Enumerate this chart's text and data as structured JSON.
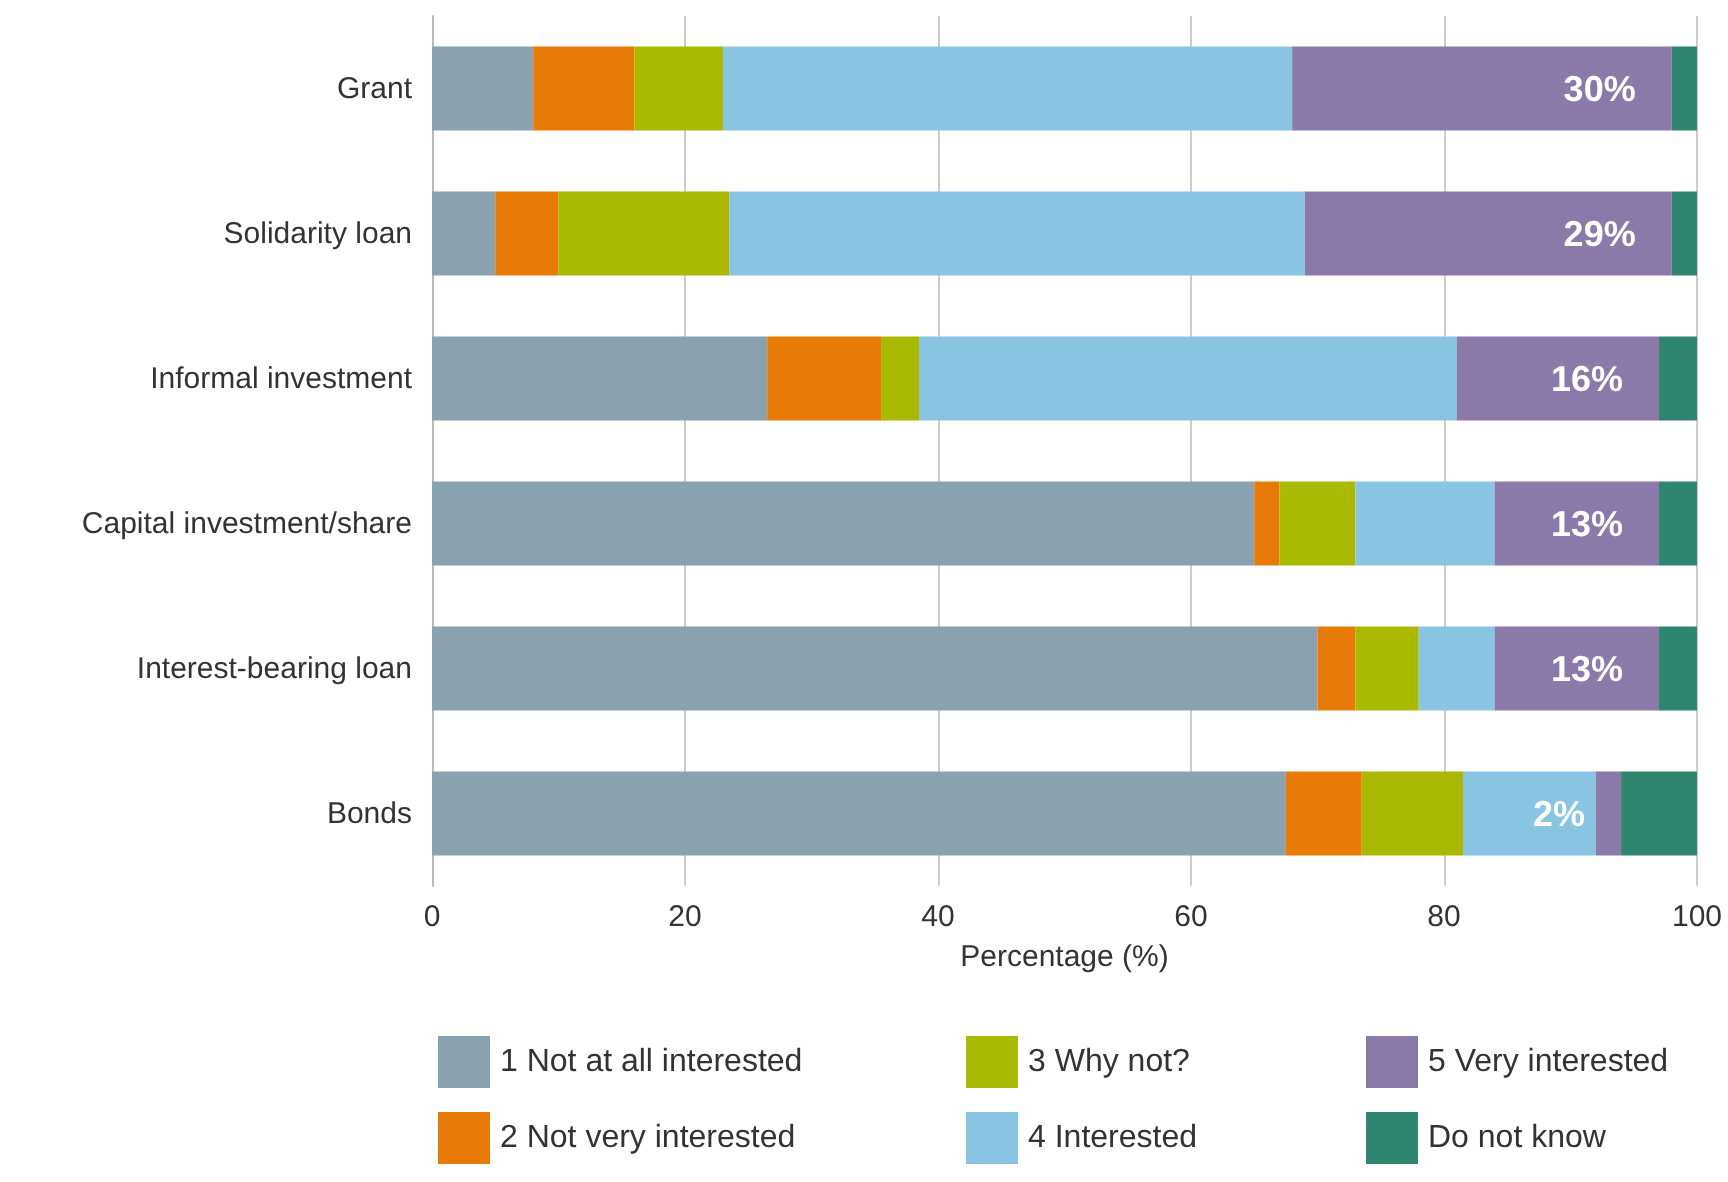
{
  "chart_data": {
    "type": "bar",
    "orientation": "horizontal",
    "stacked": true,
    "categories": [
      "Grant",
      "Solidarity loan",
      "Informal investment",
      "Capital investment/share",
      "Interest-bearing loan",
      "Bonds"
    ],
    "xlabel": "Percentage (%)",
    "xlim": [
      0,
      100
    ],
    "xticks": [
      0,
      20,
      40,
      60,
      80,
      100
    ],
    "grid": "x",
    "legend": "bottom",
    "series": [
      {
        "name": "1 Not at all interested",
        "color": "#8aa1b0",
        "values": [
          8,
          5,
          26.5,
          65,
          70,
          67.5
        ]
      },
      {
        "name": "2 Not very interested",
        "color": "#e87a07",
        "values": [
          8,
          5,
          9,
          2,
          3,
          6
        ]
      },
      {
        "name": "3 Why not?",
        "color": "#a8b900",
        "values": [
          7,
          13.5,
          3,
          6,
          5,
          8
        ]
      },
      {
        "name": "4 Interested",
        "color": "#89c5e3",
        "values": [
          45,
          45.5,
          42.5,
          11,
          6,
          10.5
        ]
      },
      {
        "name": "5 Very interested",
        "color": "#8b79a9",
        "values": [
          30,
          29,
          16,
          13,
          13,
          2
        ],
        "value_labels": [
          "30%",
          "29%",
          "16%",
          "13%",
          "13%",
          "2%"
        ]
      },
      {
        "name": "Do not know",
        "color": "#2e8570",
        "values": [
          2,
          2,
          3,
          3,
          3,
          6
        ]
      }
    ]
  }
}
